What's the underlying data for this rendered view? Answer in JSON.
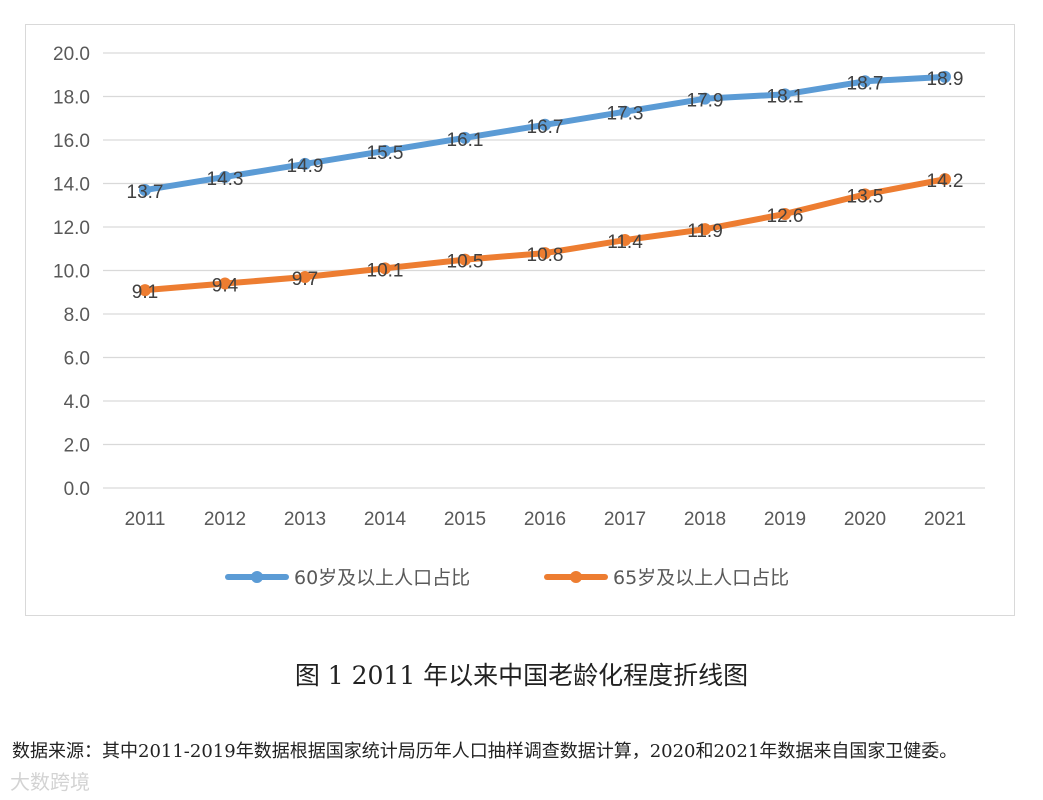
{
  "chart_data": {
    "type": "line",
    "title": "",
    "xlabel": "",
    "ylabel": "",
    "categories": [
      "2011",
      "2012",
      "2013",
      "2014",
      "2015",
      "2016",
      "2017",
      "2018",
      "2019",
      "2020",
      "2021"
    ],
    "ylim": [
      0,
      20
    ],
    "yticks": [
      "0.0",
      "2.0",
      "4.0",
      "6.0",
      "8.0",
      "10.0",
      "12.0",
      "14.0",
      "16.0",
      "18.0",
      "20.0"
    ],
    "grid": true,
    "legend_position": "bottom",
    "series": [
      {
        "name": "60岁及以上人口占比",
        "color": "#5b9bd5",
        "values": [
          13.7,
          14.3,
          14.9,
          15.5,
          16.1,
          16.7,
          17.3,
          17.9,
          18.1,
          18.7,
          18.9
        ]
      },
      {
        "name": "65岁及以上人口占比",
        "color": "#ed7d31",
        "values": [
          9.1,
          9.4,
          9.7,
          10.1,
          10.5,
          10.8,
          11.4,
          11.9,
          12.6,
          13.5,
          14.2
        ]
      }
    ]
  },
  "caption": "图 1  2011 年以来中国老龄化程度折线图",
  "source_note": "数据来源：其中2011-2019年数据根据国家统计局历年人口抽样调查数据计算，2020和2021年数据来自国家卫健委。",
  "watermark": "大数跨境"
}
